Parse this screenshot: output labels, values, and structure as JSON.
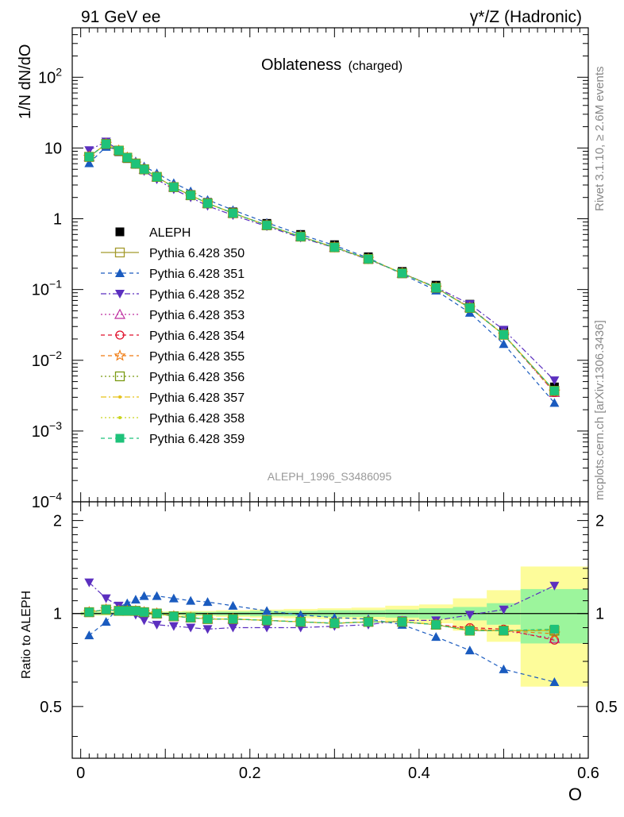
{
  "header": {
    "left": "91 GeV ee",
    "right_sup": "γ*/Z (Hadronic)"
  },
  "side": {
    "rivet": "Rivet 3.1.10, ≥ 2.6M events",
    "mcplots": "mcplots.cern.ch [arXiv:1306.3436]"
  },
  "plot_title": "Oblateness",
  "plot_title_sub": "(charged)",
  "analysis_id": "ALEPH_1996_S3486095",
  "colors": {
    "ALEPH": "#000000",
    "350": "#a49a2c",
    "351": "#1a5bbf",
    "352": "#5b2fbf",
    "353": "#bf2fa0",
    "354": "#e0102c",
    "355": "#f07a10",
    "356": "#7a9a12",
    "357": "#e6c21a",
    "358": "#c9d41c",
    "359": "#1ec27a",
    "band_inner": "#9cf59c",
    "band_outer": "#fdfc9a"
  },
  "chart_data": [
    {
      "type": "line",
      "title": "Oblateness (charged)",
      "ylabel": "1/N dN/dO",
      "xlim": [
        -0.01,
        0.6
      ],
      "ylim": [
        0.0001,
        500
      ],
      "yscale": "log",
      "ytick_labels": [
        "10^-4",
        "10^-3",
        "10^-2",
        "10^-1",
        "1",
        "10",
        "10^2"
      ],
      "legend_position": "left-middle",
      "x": [
        0.01,
        0.03,
        0.045,
        0.055,
        0.065,
        0.075,
        0.09,
        0.11,
        0.13,
        0.15,
        0.18,
        0.22,
        0.26,
        0.3,
        0.34,
        0.38,
        0.42,
        0.46,
        0.5,
        0.56
      ],
      "series": [
        {
          "name": "ALEPH",
          "key": "ALEPH",
          "style": "data",
          "values": [
            7.4,
            11.0,
            8.9,
            7.1,
            5.9,
            4.9,
            3.9,
            2.85,
            2.2,
            1.7,
            1.25,
            0.86,
            0.6,
            0.43,
            0.29,
            0.18,
            0.115,
            0.062,
            0.026,
            0.0042
          ]
        },
        {
          "name": "Pythia 6.428 350",
          "key": "350",
          "style": "solid",
          "marker": "sq_open",
          "values": [
            7.5,
            11.4,
            9.2,
            7.3,
            6.05,
            5.0,
            3.9,
            2.8,
            2.15,
            1.65,
            1.2,
            0.81,
            0.56,
            0.395,
            0.27,
            0.17,
            0.106,
            0.055,
            0.023,
            0.0037
          ]
        },
        {
          "name": "Pythia 6.428 351",
          "key": "351",
          "style": "dash",
          "marker": "tri_up",
          "values": [
            6.1,
            10.4,
            9.3,
            7.6,
            6.5,
            5.5,
            4.4,
            3.2,
            2.45,
            1.85,
            1.33,
            0.88,
            0.6,
            0.42,
            0.28,
            0.165,
            0.097,
            0.047,
            0.017,
            0.0025
          ]
        },
        {
          "name": "Pythia 6.428 352",
          "key": "352",
          "style": "dashdot",
          "marker": "tri_down",
          "values": [
            9.3,
            12.3,
            9.4,
            7.3,
            5.9,
            4.7,
            3.6,
            2.6,
            2.0,
            1.52,
            1.12,
            0.78,
            0.54,
            0.39,
            0.265,
            0.17,
            0.108,
            0.062,
            0.027,
            0.0052
          ]
        },
        {
          "name": "Pythia 6.428 353",
          "key": "353",
          "style": "dot",
          "marker": "tri_up_open",
          "values": [
            7.5,
            11.4,
            9.2,
            7.3,
            6.0,
            5.0,
            3.9,
            2.8,
            2.15,
            1.65,
            1.2,
            0.81,
            0.56,
            0.395,
            0.27,
            0.17,
            0.106,
            0.056,
            0.023,
            0.0035
          ]
        },
        {
          "name": "Pythia 6.428 354",
          "key": "354",
          "style": "dash",
          "marker": "circle_open",
          "values": [
            7.5,
            11.4,
            9.2,
            7.3,
            6.0,
            5.0,
            3.9,
            2.8,
            2.15,
            1.65,
            1.2,
            0.81,
            0.56,
            0.395,
            0.27,
            0.17,
            0.106,
            0.056,
            0.023,
            0.0035
          ]
        },
        {
          "name": "Pythia 6.428 355",
          "key": "355",
          "style": "dash",
          "marker": "star_open",
          "values": [
            7.5,
            11.4,
            9.2,
            7.3,
            6.0,
            5.0,
            3.9,
            2.8,
            2.15,
            1.65,
            1.2,
            0.81,
            0.56,
            0.395,
            0.27,
            0.17,
            0.106,
            0.055,
            0.023,
            0.0036
          ]
        },
        {
          "name": "Pythia 6.428 356",
          "key": "356",
          "style": "dot",
          "marker": "sq_open",
          "values": [
            7.5,
            11.4,
            9.2,
            7.3,
            6.0,
            5.0,
            3.9,
            2.8,
            2.15,
            1.65,
            1.2,
            0.81,
            0.56,
            0.395,
            0.27,
            0.17,
            0.106,
            0.055,
            0.023,
            0.0037
          ]
        },
        {
          "name": "Pythia 6.428 357",
          "key": "357",
          "style": "dashdot",
          "marker": "dot",
          "values": [
            7.5,
            11.4,
            9.2,
            7.3,
            6.0,
            5.0,
            3.9,
            2.8,
            2.15,
            1.65,
            1.2,
            0.81,
            0.56,
            0.395,
            0.27,
            0.17,
            0.106,
            0.055,
            0.023,
            0.0037
          ]
        },
        {
          "name": "Pythia 6.428 358",
          "key": "358",
          "style": "dot",
          "marker": "dot",
          "values": [
            7.5,
            11.4,
            9.2,
            7.3,
            6.0,
            5.0,
            3.9,
            2.8,
            2.15,
            1.65,
            1.2,
            0.81,
            0.56,
            0.395,
            0.27,
            0.17,
            0.106,
            0.055,
            0.023,
            0.0037
          ]
        },
        {
          "name": "Pythia 6.428 359",
          "key": "359",
          "style": "dash",
          "marker": "sq_filled",
          "values": [
            7.5,
            11.4,
            9.2,
            7.3,
            6.0,
            5.0,
            3.9,
            2.8,
            2.15,
            1.65,
            1.2,
            0.81,
            0.56,
            0.395,
            0.27,
            0.17,
            0.106,
            0.055,
            0.023,
            0.0037
          ]
        }
      ]
    },
    {
      "type": "line",
      "ylabel": "Ratio to ALEPH",
      "xlabel": "O",
      "xlim": [
        -0.01,
        0.6
      ],
      "ylim": [
        0.34,
        2.3
      ],
      "yscale": "log",
      "ytick_labels": [
        "0.5",
        "1",
        "2"
      ],
      "xtick_labels": [
        "0",
        "0.2",
        "0.4",
        "0.6"
      ],
      "bands": {
        "edges": [
          0.0,
          0.02,
          0.04,
          0.05,
          0.06,
          0.07,
          0.08,
          0.1,
          0.12,
          0.14,
          0.16,
          0.2,
          0.24,
          0.28,
          0.32,
          0.36,
          0.4,
          0.44,
          0.48,
          0.52,
          0.6
        ],
        "inner": [
          0.01,
          0.01,
          0.01,
          0.01,
          0.01,
          0.01,
          0.01,
          0.01,
          0.012,
          0.012,
          0.015,
          0.02,
          0.02,
          0.025,
          0.025,
          0.03,
          0.04,
          0.05,
          0.08,
          0.2
        ],
        "outer": [
          0.015,
          0.015,
          0.015,
          0.015,
          0.015,
          0.015,
          0.015,
          0.017,
          0.02,
          0.02,
          0.025,
          0.03,
          0.035,
          0.04,
          0.045,
          0.06,
          0.07,
          0.12,
          0.19,
          0.42
        ]
      },
      "series": [
        {
          "key": "350",
          "values": [
            1.01,
            1.03,
            1.02,
            1.02,
            1.02,
            1.01,
            1.0,
            0.98,
            0.97,
            0.96,
            0.96,
            0.95,
            0.94,
            0.93,
            0.94,
            0.94,
            0.92,
            0.88,
            0.88,
            0.88
          ]
        },
        {
          "key": "351",
          "values": [
            0.85,
            0.94,
            1.05,
            1.08,
            1.11,
            1.14,
            1.14,
            1.12,
            1.1,
            1.09,
            1.06,
            1.02,
            0.99,
            0.97,
            0.96,
            0.92,
            0.84,
            0.76,
            0.66,
            0.6
          ]
        },
        {
          "key": "352",
          "values": [
            1.26,
            1.12,
            1.06,
            1.02,
            0.99,
            0.95,
            0.92,
            0.91,
            0.9,
            0.89,
            0.9,
            0.9,
            0.9,
            0.91,
            0.92,
            0.95,
            0.95,
            0.99,
            1.03,
            1.23
          ]
        },
        {
          "key": "353",
          "values": [
            1.01,
            1.03,
            1.02,
            1.02,
            1.02,
            1.01,
            1.0,
            0.98,
            0.97,
            0.96,
            0.96,
            0.95,
            0.94,
            0.93,
            0.94,
            0.94,
            0.92,
            0.89,
            0.88,
            0.83
          ]
        },
        {
          "key": "354",
          "values": [
            1.01,
            1.03,
            1.02,
            1.02,
            1.02,
            1.01,
            1.0,
            0.98,
            0.97,
            0.96,
            0.96,
            0.95,
            0.94,
            0.93,
            0.94,
            0.94,
            0.92,
            0.9,
            0.89,
            0.82
          ]
        },
        {
          "key": "355",
          "values": [
            1.01,
            1.03,
            1.02,
            1.02,
            1.02,
            1.01,
            1.0,
            0.98,
            0.97,
            0.96,
            0.96,
            0.95,
            0.94,
            0.93,
            0.94,
            0.94,
            0.92,
            0.89,
            0.88,
            0.86
          ]
        },
        {
          "key": "356",
          "values": [
            1.01,
            1.03,
            1.02,
            1.02,
            1.02,
            1.01,
            1.0,
            0.98,
            0.97,
            0.96,
            0.96,
            0.95,
            0.94,
            0.93,
            0.94,
            0.94,
            0.92,
            0.88,
            0.88,
            0.88
          ]
        },
        {
          "key": "357",
          "values": [
            1.01,
            1.03,
            1.02,
            1.02,
            1.02,
            1.01,
            1.0,
            0.98,
            0.97,
            0.96,
            0.96,
            0.95,
            0.94,
            0.93,
            0.94,
            0.94,
            0.92,
            0.88,
            0.88,
            0.88
          ]
        },
        {
          "key": "358",
          "values": [
            1.01,
            1.03,
            1.02,
            1.02,
            1.02,
            1.01,
            1.0,
            0.98,
            0.97,
            0.96,
            0.96,
            0.95,
            0.94,
            0.93,
            0.94,
            0.94,
            0.92,
            0.88,
            0.88,
            0.89
          ]
        },
        {
          "key": "359",
          "values": [
            1.01,
            1.03,
            1.02,
            1.02,
            1.02,
            1.01,
            1.0,
            0.98,
            0.97,
            0.96,
            0.96,
            0.95,
            0.94,
            0.93,
            0.94,
            0.94,
            0.92,
            0.88,
            0.88,
            0.89
          ]
        }
      ]
    }
  ]
}
